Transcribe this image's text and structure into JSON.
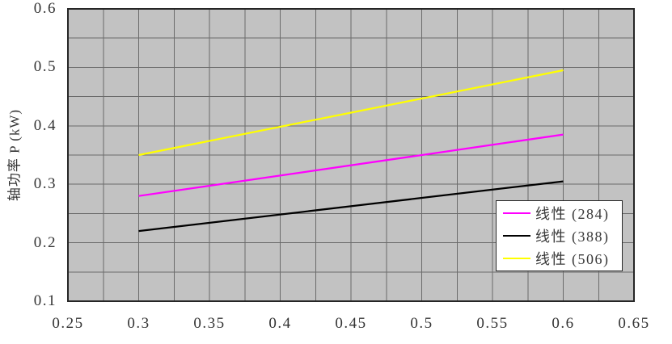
{
  "chart_data": {
    "type": "line",
    "title": "",
    "xlabel": "",
    "ylabel": "轴功率 P (kW)",
    "xlim": [
      0.25,
      0.65
    ],
    "ylim": [
      0.1,
      0.6
    ],
    "x_tick_labels": [
      "0.25",
      "0.3",
      "0.35",
      "0.4",
      "0.45",
      "0.5",
      "0.55",
      "0.6",
      "0.65"
    ],
    "y_tick_labels": [
      "0.1",
      "0.2",
      "0.3",
      "0.4",
      "0.5",
      "0.6"
    ],
    "x_grid_step": 0.025,
    "y_grid_step": 0.05,
    "grid": true,
    "legend_position": "bottom-right",
    "series": [
      {
        "name": "线性 (284)",
        "color": "#ff00ff",
        "points": [
          [
            0.3,
            0.28
          ],
          [
            0.6,
            0.385
          ]
        ]
      },
      {
        "name": "线性 (388)",
        "color": "#000000",
        "points": [
          [
            0.3,
            0.22
          ],
          [
            0.6,
            0.305
          ]
        ]
      },
      {
        "name": "线性 (506)",
        "color": "#ffff00",
        "points": [
          [
            0.3,
            0.35
          ],
          [
            0.6,
            0.495
          ]
        ]
      }
    ],
    "colors": {
      "plot_bg": "#c2c2c2",
      "grid": "#6b6b6b",
      "border": "#262626",
      "text": "#333333"
    }
  }
}
